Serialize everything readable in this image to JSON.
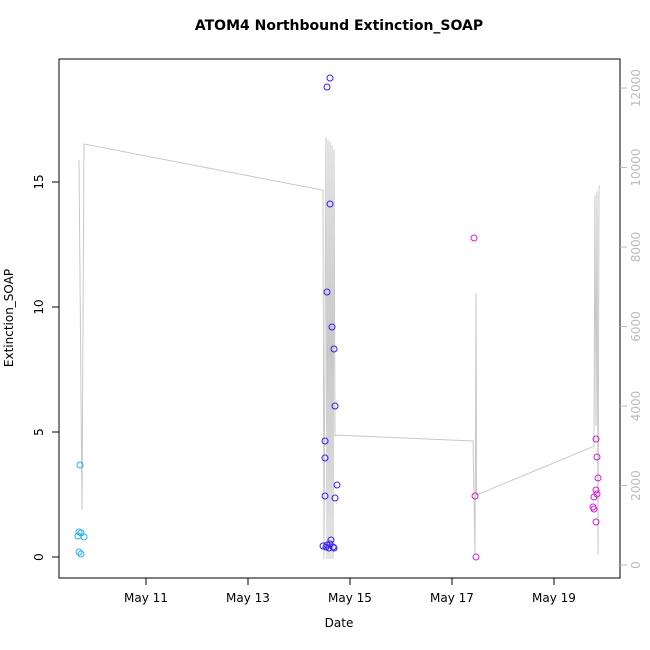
{
  "chart_data": {
    "type": "scatter",
    "title": "ATOM4 Northbound Extinction_SOAP",
    "x_label": "Date",
    "y_label": "Extinction_SOAP",
    "xlim": [
      9.294,
      20.294
    ],
    "xticks": [
      {
        "value": 11,
        "label": "May 11"
      },
      {
        "value": 13,
        "label": "May 13"
      },
      {
        "value": 15,
        "label": "May 15"
      },
      {
        "value": 17,
        "label": "May 17"
      },
      {
        "value": 19,
        "label": "May 19"
      }
    ],
    "ylim": [
      -0.84,
      19.92
    ],
    "yticks": [
      0,
      5,
      10,
      15
    ],
    "y2lim": [
      -327,
      12730
    ],
    "y2ticks": [
      0,
      2000,
      4000,
      6000,
      8000,
      10000,
      12000
    ],
    "y2_color": "#bbbbbb",
    "series": [
      {
        "type": "line",
        "axis": "y2",
        "color": "#c8c8c8",
        "x": [
          9.686,
          9.745,
          9.784,
          14.471,
          14.49,
          14.529,
          14.549,
          14.569,
          14.588,
          14.608,
          14.627,
          14.647,
          14.667,
          14.686,
          14.706,
          14.725,
          17.412,
          17.451,
          17.471,
          17.48,
          19.784,
          19.804,
          19.824,
          19.843,
          19.863,
          19.882,
          19.902
        ],
        "values": [
          10190,
          1380,
          10590,
          9430,
          150,
          10760,
          150,
          10700,
          150,
          10650,
          150,
          10550,
          150,
          10450,
          3250,
          3270,
          3120,
          250,
          6840,
          1760,
          2990,
          9300,
          3500,
          9400,
          250,
          9500,
          9550
        ]
      },
      {
        "type": "scatter",
        "color": "#29b0e8",
        "x": [
          9.706,
          9.686,
          9.725,
          9.667,
          9.784,
          9.686,
          9.725
        ],
        "values": [
          3.68,
          1.0,
          0.96,
          0.84,
          0.8,
          0.2,
          0.12
        ]
      },
      {
        "type": "scatter",
        "color": "#3a1ef0",
        "x": [
          14.608,
          14.549,
          14.608,
          14.549,
          14.647,
          14.686,
          14.706,
          14.51,
          14.51,
          14.745,
          14.51,
          14.706,
          14.627,
          14.471,
          14.549,
          14.608,
          14.667,
          14.588,
          14.686,
          14.529
        ],
        "values": [
          19.16,
          18.8,
          14.12,
          10.6,
          9.2,
          8.32,
          6.04,
          4.64,
          3.96,
          2.88,
          2.44,
          2.36,
          0.68,
          0.44,
          0.48,
          0.52,
          0.4,
          0.36,
          0.36,
          0.4
        ]
      },
      {
        "type": "scatter",
        "color": "#d21fd2",
        "x": [
          17.431,
          17.451,
          17.471,
          19.824,
          19.843,
          19.863,
          19.824,
          19.843,
          19.784,
          19.765,
          19.784,
          19.824
        ],
        "values": [
          12.76,
          2.44,
          0.0,
          4.72,
          4.0,
          3.16,
          2.68,
          2.52,
          2.4,
          2.0,
          1.92,
          1.4
        ]
      }
    ]
  }
}
